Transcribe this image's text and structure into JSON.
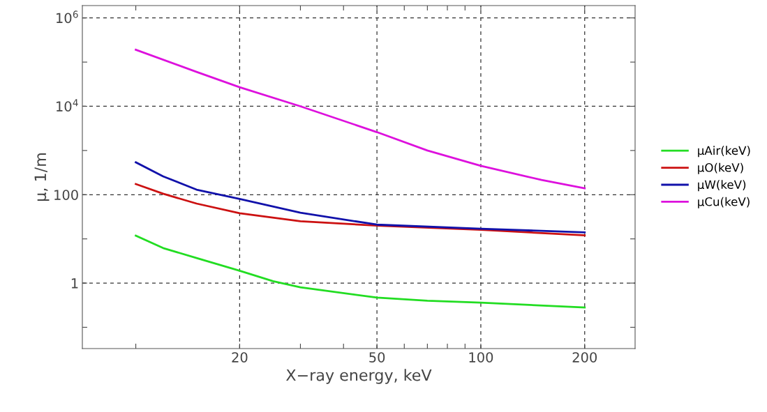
{
  "chart_data": {
    "type": "line",
    "xlabel": "X−ray energy, keV",
    "ylabel": "μ, 1/m",
    "log": "xy",
    "grid": true,
    "legend": "right",
    "marker": "none",
    "line_style": "solid",
    "xlim": [
      7.0,
      280
    ],
    "ylim": [
      0.033,
      1900000
    ],
    "xticks": [
      {
        "value": 10,
        "label": null
      },
      20,
      {
        "value": 30,
        "label": null
      },
      {
        "value": 40,
        "label": null
      },
      50,
      {
        "value": 60,
        "label": null
      },
      {
        "value": 70,
        "label": null
      },
      {
        "value": 80,
        "label": null
      },
      {
        "value": 90,
        "label": null
      },
      100,
      200
    ],
    "yticks": [
      {
        "value": 0.1,
        "label": null
      },
      1,
      {
        "value": 10,
        "label": null
      },
      100,
      {
        "value": 1000,
        "label": null
      },
      {
        "value": 10000,
        "label": "10$^{4}$"
      },
      {
        "value": 100000,
        "label": null
      },
      {
        "value": 1000000,
        "label": "10$^{6}$"
      }
    ],
    "series": [
      {
        "name": "μAir(keV)",
        "color": "#22dd22",
        "x": [
          10,
          12,
          15,
          20,
          25,
          30,
          50,
          70,
          100,
          200
        ],
        "values": [
          11.8,
          6.2,
          3.7,
          1.9,
          1.1,
          0.8,
          0.47,
          0.4,
          0.36,
          0.28
        ]
      },
      {
        "name": "μO(keV)",
        "color": "#cc1111",
        "x": [
          10,
          12,
          15,
          20,
          30,
          50,
          100,
          200
        ],
        "values": [
          174,
          105,
          63,
          38,
          25,
          20,
          16,
          12
        ]
      },
      {
        "name": "μW(keV)",
        "color": "#1111aa",
        "x": [
          10,
          12,
          15,
          20,
          30,
          50,
          100,
          200
        ],
        "values": [
          540,
          260,
          130,
          80,
          39,
          21,
          17,
          14
        ]
      },
      {
        "name": "μCu(keV)",
        "color": "#dd11dd",
        "x": [
          10,
          15,
          20,
          30,
          50,
          70,
          100,
          150,
          200
        ],
        "values": [
          190000,
          60000,
          27000,
          10000,
          2600,
          1000,
          450,
          215,
          140
        ]
      }
    ]
  }
}
